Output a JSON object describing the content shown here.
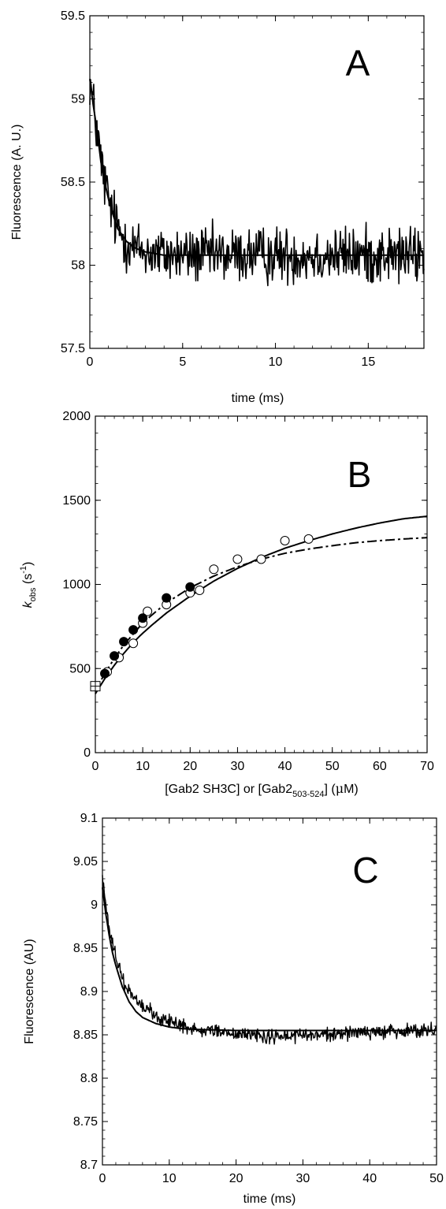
{
  "chart_data": [
    {
      "panel_label": "A",
      "type": "line",
      "xlabel": "time (ms)",
      "ylabel": "Fluorescence (A. U.)",
      "xlim": [
        0,
        18
      ],
      "ylim": [
        57.5,
        59.5
      ],
      "xticks": [
        0,
        5,
        10,
        15
      ],
      "xtick_labels": [
        "0",
        "5",
        "10",
        "15"
      ],
      "yticks": [
        57.5,
        58,
        58.5,
        59,
        59.5
      ],
      "ytick_labels": [
        "57.5",
        "58",
        "58.5",
        "59",
        "59.5"
      ],
      "series": [
        {
          "type": "noisy_trace",
          "x": [
            0,
            0.2,
            0.4,
            0.6,
            0.8,
            1.0,
            1.2,
            1.5,
            2.0,
            2.5,
            3.0,
            4.0,
            5.0,
            6.0,
            8.0,
            10.0,
            12.0,
            14.0,
            16.0,
            18.0
          ],
          "values": [
            59.12,
            58.95,
            58.8,
            58.62,
            58.5,
            58.4,
            58.32,
            58.22,
            58.14,
            58.1,
            58.08,
            58.06,
            58.06,
            58.06,
            58.06,
            58.06,
            58.06,
            58.06,
            58.06,
            58.06
          ],
          "noise_amplitude": 0.13
        },
        {
          "type": "fit",
          "x": [
            0,
            0.2,
            0.4,
            0.6,
            0.8,
            1.0,
            1.2,
            1.5,
            2.0,
            2.5,
            3.0,
            4.0,
            5.0,
            6.0,
            8.0,
            10.0,
            12.0,
            14.0,
            16.0,
            18.0
          ],
          "values": [
            59.12,
            58.95,
            58.8,
            58.62,
            58.5,
            58.4,
            58.32,
            58.22,
            58.14,
            58.1,
            58.08,
            58.06,
            58.06,
            58.06,
            58.06,
            58.06,
            58.06,
            58.06,
            58.06,
            58.06
          ]
        }
      ]
    },
    {
      "panel_label": "B",
      "type": "scatter",
      "xlabel_parts": [
        "[Gab2 SH3C] or [Gab2",
        "503-524",
        "] (",
        "μ",
        "M)"
      ],
      "ylabel_parts": [
        "k",
        "obs",
        " (s",
        "-1",
        ")"
      ],
      "xlim": [
        0,
        70
      ],
      "ylim": [
        0,
        2000
      ],
      "xticks": [
        0,
        10,
        20,
        30,
        40,
        50,
        60,
        70
      ],
      "xtick_labels": [
        "0",
        "10",
        "20",
        "30",
        "40",
        "50",
        "60",
        "70"
      ],
      "yticks": [
        0,
        500,
        1000,
        1500,
        2000
      ],
      "ytick_labels": [
        "0",
        "500",
        "1000",
        "1500",
        "2000"
      ],
      "series": [
        {
          "marker": "filled_circle",
          "x": [
            2,
            4,
            6,
            8,
            10,
            15,
            20
          ],
          "values": [
            470,
            575,
            660,
            730,
            800,
            920,
            985
          ]
        },
        {
          "marker": "open_circle",
          "x": [
            2.5,
            5,
            8,
            10,
            11,
            15,
            20,
            22,
            25,
            30,
            35,
            40,
            45
          ],
          "values": [
            480,
            565,
            650,
            770,
            840,
            880,
            950,
            965,
            1090,
            1150,
            1150,
            1260,
            1270
          ]
        },
        {
          "marker": "open_square",
          "x": [
            0
          ],
          "values": [
            395
          ]
        },
        {
          "type": "fit_solid",
          "x": [
            0,
            2,
            4,
            6,
            8,
            10,
            12,
            15,
            20,
            25,
            30,
            35,
            40,
            45,
            50,
            55,
            60,
            65,
            70
          ],
          "values": [
            350,
            440,
            520,
            590,
            655,
            710,
            760,
            830,
            930,
            1020,
            1095,
            1160,
            1215,
            1260,
            1300,
            1335,
            1365,
            1390,
            1405
          ]
        },
        {
          "type": "fit_dashed",
          "x": [
            0,
            2,
            4,
            6,
            8,
            10,
            12,
            15,
            20,
            25,
            30,
            35,
            40,
            45,
            50,
            55,
            60,
            65,
            70
          ],
          "values": [
            370,
            470,
            560,
            640,
            705,
            770,
            820,
            890,
            980,
            1050,
            1105,
            1150,
            1185,
            1210,
            1230,
            1248,
            1260,
            1270,
            1278
          ]
        }
      ]
    },
    {
      "panel_label": "C",
      "type": "line",
      "xlabel": "time (ms)",
      "ylabel": "Fluorescence (AU)",
      "xlim": [
        0,
        50
      ],
      "ylim": [
        8.7,
        9.1
      ],
      "xticks": [
        0,
        10,
        20,
        30,
        40,
        50
      ],
      "xtick_labels": [
        "0",
        "10",
        "20",
        "30",
        "40",
        "50"
      ],
      "yticks": [
        8.7,
        8.75,
        8.8,
        8.85,
        8.9,
        8.95,
        9.0,
        9.05,
        9.1
      ],
      "ytick_labels": [
        "8.7",
        "8.75",
        "8.8",
        "8.85",
        "8.9",
        "8.95",
        "9",
        "9.05",
        "9.1"
      ],
      "series": [
        {
          "type": "noisy_trace",
          "x": [
            0,
            0.5,
            1,
            1.5,
            2,
            3,
            4,
            5,
            6,
            8,
            10,
            12,
            15,
            20,
            25,
            30,
            35,
            40,
            45,
            50
          ],
          "values": [
            9.03,
            9.0,
            8.975,
            8.955,
            8.94,
            8.915,
            8.9,
            8.89,
            8.882,
            8.872,
            8.865,
            8.86,
            8.857,
            8.852,
            8.848,
            8.849,
            8.851,
            8.853,
            8.855,
            8.858
          ],
          "noise_amplitude": 0.006
        },
        {
          "type": "fit",
          "x": [
            0,
            0.5,
            1,
            1.5,
            2,
            3,
            4,
            5,
            6,
            8,
            10,
            12,
            15,
            20,
            25,
            30,
            35,
            40,
            45,
            50
          ],
          "values": [
            9.02,
            8.99,
            8.965,
            8.945,
            8.93,
            8.905,
            8.888,
            8.877,
            8.87,
            8.863,
            8.859,
            8.857,
            8.856,
            8.855,
            8.855,
            8.855,
            8.855,
            8.855,
            8.855,
            8.855
          ]
        }
      ]
    }
  ]
}
